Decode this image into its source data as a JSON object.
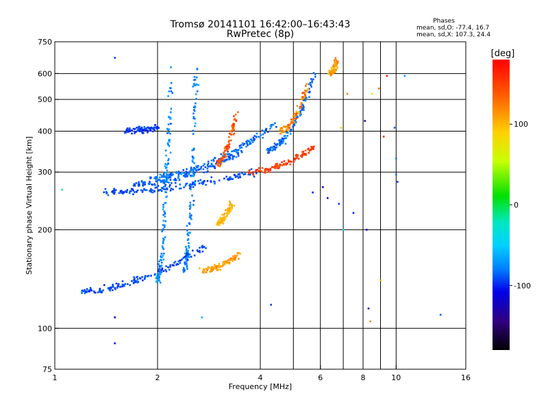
{
  "title": {
    "line1": "Tromsø 20141101 16:42:00–16:43:43",
    "line2": "RwPretec (8p)"
  },
  "stats": {
    "heading": "Phases",
    "o_mode": "mean, sd,O: -77.4, 16.7",
    "x_mode": "mean, sd,X: 107.3, 24.4"
  },
  "colorbar": {
    "label": "[deg]",
    "ticks": [
      {
        "value": 100,
        "label": "100"
      },
      {
        "value": 0,
        "label": "0"
      },
      {
        "value": -100,
        "label": "-100"
      }
    ],
    "range": [
      -180,
      180
    ]
  },
  "chart_data": {
    "type": "scatter",
    "title": "Tromsø 20141101 16:42:00–16:43:43",
    "subtitle": "RwPretec (8p)",
    "xlabel": "Frequency [MHz]",
    "ylabel": "Stationary phase Virtual Height [km]",
    "xscale": "log",
    "yscale": "log",
    "xlim": [
      1,
      16
    ],
    "ylim": [
      75,
      750
    ],
    "xticks": [
      {
        "value": 1,
        "label": "1"
      },
      {
        "value": 2,
        "label": "2"
      },
      {
        "value": 4,
        "label": "4"
      },
      {
        "value": 6,
        "label": "6"
      },
      {
        "value": 8,
        "label": "8"
      },
      {
        "value": 10,
        "label": "10"
      },
      {
        "value": 16,
        "label": "16"
      }
    ],
    "yticks": [
      {
        "value": 75,
        "label": "75"
      },
      {
        "value": 100,
        "label": "100"
      },
      {
        "value": 200,
        "label": "200"
      },
      {
        "value": 300,
        "label": "300"
      },
      {
        "value": 400,
        "label": "400"
      },
      {
        "value": 500,
        "label": "500"
      },
      {
        "value": 600,
        "label": "600"
      },
      {
        "value": 750,
        "label": "750"
      }
    ],
    "grid_x": [
      2,
      4,
      5,
      6,
      7,
      8,
      9,
      10
    ],
    "grid_y": [
      100,
      200,
      300,
      400,
      500,
      600
    ],
    "grid": true,
    "colormap": "rainbow",
    "color_value": "phase (deg)",
    "series": [
      {
        "name": "O-mode",
        "description_mode": "traces",
        "traces": [
          {
            "f0": 1.4,
            "f1": 3.9,
            "h0": 260,
            "h1": 300,
            "phase": -95,
            "spread": 8
          },
          {
            "f0": 1.7,
            "f1": 3.6,
            "h0": 275,
            "h1": 350,
            "phase": -90,
            "spread": 10
          },
          {
            "f0": 1.9,
            "f1": 4.4,
            "h0": 290,
            "h1": 420,
            "phase": -85,
            "spread": 12
          },
          {
            "f0": 2.0,
            "f1": 2.2,
            "h0": 140,
            "h1": 640,
            "phase": -75,
            "spread": 12
          },
          {
            "f0": 2.4,
            "f1": 2.6,
            "h0": 150,
            "h1": 640,
            "phase": -80,
            "spread": 12
          },
          {
            "f0": 1.2,
            "f1": 2.8,
            "h0": 130,
            "h1": 180,
            "phase": -95,
            "spread": 10
          },
          {
            "f0": 1.6,
            "f1": 2.0,
            "h0": 400,
            "h1": 410,
            "phase": -100,
            "spread": 6
          },
          {
            "f0": 4.2,
            "f1": 5.8,
            "h0": 350,
            "h1": 600,
            "phase": -85,
            "spread": 10
          }
        ]
      },
      {
        "name": "X-mode",
        "description_mode": "traces",
        "traces": [
          {
            "f0": 2.7,
            "f1": 3.5,
            "h0": 150,
            "h1": 170,
            "phase": 110,
            "spread": 10
          },
          {
            "f0": 3.0,
            "f1": 3.3,
            "h0": 210,
            "h1": 240,
            "phase": 100,
            "spread": 8
          },
          {
            "f0": 3.0,
            "f1": 3.4,
            "h0": 320,
            "h1": 450,
            "phase": 140,
            "spread": 15
          },
          {
            "f0": 3.7,
            "f1": 5.8,
            "h0": 300,
            "h1": 360,
            "phase": 150,
            "spread": 12
          },
          {
            "f0": 4.6,
            "f1": 5.5,
            "h0": 400,
            "h1": 550,
            "phase": 120,
            "spread": 20
          },
          {
            "f0": 6.4,
            "f1": 6.7,
            "h0": 600,
            "h1": 650,
            "phase": 110,
            "spread": 20
          }
        ]
      }
    ],
    "sparse_points": [
      {
        "x": 1.5,
        "y": 670,
        "phase": -100
      },
      {
        "x": 1.5,
        "y": 90,
        "phase": -110
      },
      {
        "x": 1.5,
        "y": 108,
        "phase": -120
      },
      {
        "x": 2.7,
        "y": 108,
        "phase": -60
      },
      {
        "x": 1.05,
        "y": 265,
        "phase": -40
      },
      {
        "x": 4.3,
        "y": 118,
        "phase": -100
      },
      {
        "x": 6.1,
        "y": 270,
        "phase": -120
      },
      {
        "x": 6.3,
        "y": 250,
        "phase": -130
      },
      {
        "x": 6.8,
        "y": 240,
        "phase": -100
      },
      {
        "x": 7.5,
        "y": 225,
        "phase": -110
      },
      {
        "x": 8.2,
        "y": 200,
        "phase": -120
      },
      {
        "x": 8.3,
        "y": 115,
        "phase": -130
      },
      {
        "x": 8.4,
        "y": 105,
        "phase": 120
      },
      {
        "x": 9.0,
        "y": 140,
        "phase": 100
      },
      {
        "x": 9.2,
        "y": 385,
        "phase": 160
      },
      {
        "x": 9.4,
        "y": 590,
        "phase": 170
      },
      {
        "x": 9.9,
        "y": 410,
        "phase": -90
      },
      {
        "x": 10.0,
        "y": 330,
        "phase": -80
      },
      {
        "x": 10.0,
        "y": 295,
        "phase": -85
      },
      {
        "x": 10.1,
        "y": 280,
        "phase": -100
      },
      {
        "x": 10.6,
        "y": 590,
        "phase": -70
      },
      {
        "x": 13.5,
        "y": 110,
        "phase": -90
      },
      {
        "x": 8.5,
        "y": 520,
        "phase": 60
      },
      {
        "x": 8.9,
        "y": 540,
        "phase": 130
      },
      {
        "x": 5.7,
        "y": 260,
        "phase": -110
      },
      {
        "x": 7.0,
        "y": 200,
        "phase": -40
      },
      {
        "x": 8.1,
        "y": 430,
        "phase": -130
      },
      {
        "x": 7.2,
        "y": 520,
        "phase": 120
      },
      {
        "x": 6.9,
        "y": 410,
        "phase": 90
      }
    ]
  }
}
